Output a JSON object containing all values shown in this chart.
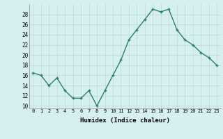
{
  "x": [
    0,
    1,
    2,
    3,
    4,
    5,
    6,
    7,
    8,
    9,
    10,
    11,
    12,
    13,
    14,
    15,
    16,
    17,
    18,
    19,
    20,
    21,
    22,
    23
  ],
  "y": [
    16.5,
    16.0,
    14.0,
    15.5,
    13.0,
    11.5,
    11.5,
    13.0,
    10.0,
    13.0,
    16.0,
    19.0,
    23.0,
    25.0,
    27.0,
    29.0,
    28.5,
    29.0,
    25.0,
    23.0,
    22.0,
    20.5,
    19.5,
    18.0
  ],
  "line_color": "#2e7d6e",
  "bg_color": "#d6f0f0",
  "grid_color": "#b8d8d8",
  "xlabel": "Humidex (Indice chaleur)",
  "ylabel_ticks": [
    10,
    12,
    14,
    16,
    18,
    20,
    22,
    24,
    26,
    28
  ],
  "ylim": [
    9.5,
    30.0
  ],
  "xlim": [
    -0.5,
    23.5
  ],
  "title": ""
}
